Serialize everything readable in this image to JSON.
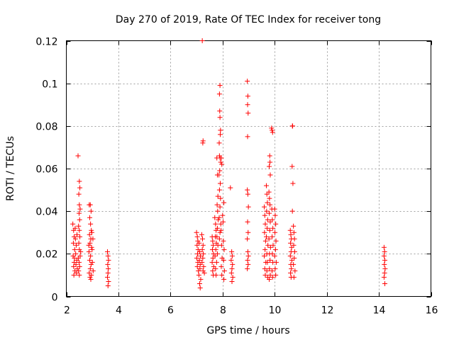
{
  "chart_data": {
    "type": "scatter",
    "title": "Day 270 of 2019, Rate Of TEC Index for receiver tong",
    "xlabel": "GPS time / hours",
    "ylabel": "ROTI / TECUs",
    "xlim": [
      2,
      16
    ],
    "ylim": [
      0,
      0.12
    ],
    "xticks": [
      2,
      4,
      6,
      8,
      10,
      12,
      14,
      16
    ],
    "xtick_labels": [
      "2",
      "4",
      "6",
      "8",
      "10",
      "12",
      "14",
      "16"
    ],
    "yticks": [
      0,
      0.02,
      0.04,
      0.06,
      0.08,
      0.1,
      0.12
    ],
    "ytick_labels": [
      "0",
      "0.02",
      "0.04",
      "0.06",
      "0.08",
      "0.1",
      "0.12"
    ],
    "grid": true,
    "marker": "+",
    "color": "#ff0000",
    "series": [
      {
        "name": "ROTI",
        "points": [
          [
            2.25,
            0.034
          ],
          [
            2.28,
            0.031
          ],
          [
            2.3,
            0.028
          ],
          [
            2.27,
            0.025
          ],
          [
            2.32,
            0.022
          ],
          [
            2.26,
            0.019
          ],
          [
            2.3,
            0.016
          ],
          [
            2.28,
            0.014
          ],
          [
            2.33,
            0.012
          ],
          [
            2.29,
            0.01
          ],
          [
            2.35,
            0.027
          ],
          [
            2.38,
            0.024
          ],
          [
            2.36,
            0.02
          ],
          [
            2.4,
            0.017
          ],
          [
            2.37,
            0.015
          ],
          [
            2.42,
            0.013
          ],
          [
            2.39,
            0.011
          ],
          [
            2.34,
            0.032
          ],
          [
            2.41,
            0.029
          ],
          [
            2.31,
            0.018
          ],
          [
            2.45,
            0.066
          ],
          [
            2.5,
            0.054
          ],
          [
            2.52,
            0.051
          ],
          [
            2.48,
            0.048
          ],
          [
            2.5,
            0.043
          ],
          [
            2.53,
            0.041
          ],
          [
            2.49,
            0.039
          ],
          [
            2.51,
            0.036
          ],
          [
            2.47,
            0.033
          ],
          [
            2.5,
            0.031
          ],
          [
            2.52,
            0.028
          ],
          [
            2.48,
            0.025
          ],
          [
            2.5,
            0.022
          ],
          [
            2.53,
            0.019
          ],
          [
            2.49,
            0.016
          ],
          [
            2.51,
            0.014
          ],
          [
            2.47,
            0.012
          ],
          [
            2.5,
            0.01
          ],
          [
            2.55,
            0.021
          ],
          [
            2.46,
            0.018
          ],
          [
            2.88,
            0.043
          ],
          [
            2.92,
            0.043
          ],
          [
            2.95,
            0.04
          ],
          [
            2.9,
            0.037
          ],
          [
            2.93,
            0.034
          ],
          [
            2.96,
            0.031
          ],
          [
            2.89,
            0.029
          ],
          [
            2.94,
            0.027
          ],
          [
            2.91,
            0.025
          ],
          [
            2.97,
            0.023
          ],
          [
            2.87,
            0.021
          ],
          [
            2.93,
            0.019
          ],
          [
            2.9,
            0.017
          ],
          [
            2.95,
            0.015
          ],
          [
            2.92,
            0.013
          ],
          [
            2.88,
            0.011
          ],
          [
            2.96,
            0.01
          ],
          [
            2.91,
            0.009
          ],
          [
            2.94,
            0.008
          ],
          [
            3.0,
            0.016
          ],
          [
            3.02,
            0.027
          ],
          [
            2.99,
            0.022
          ],
          [
            3.03,
            0.012
          ],
          [
            2.86,
            0.024
          ],
          [
            2.98,
            0.03
          ],
          [
            3.58,
            0.021
          ],
          [
            3.6,
            0.019
          ],
          [
            3.62,
            0.017
          ],
          [
            3.59,
            0.015
          ],
          [
            3.61,
            0.013
          ],
          [
            3.6,
            0.011
          ],
          [
            3.58,
            0.009
          ],
          [
            3.62,
            0.007
          ],
          [
            3.6,
            0.005
          ],
          [
            7.0,
            0.03
          ],
          [
            7.03,
            0.028
          ],
          [
            7.05,
            0.026
          ],
          [
            7.02,
            0.024
          ],
          [
            7.06,
            0.022
          ],
          [
            7.04,
            0.02
          ],
          [
            7.01,
            0.018
          ],
          [
            7.05,
            0.016
          ],
          [
            7.03,
            0.014
          ],
          [
            7.07,
            0.012
          ],
          [
            7.1,
            0.025
          ],
          [
            7.12,
            0.021
          ],
          [
            7.15,
            0.019
          ],
          [
            7.11,
            0.017
          ],
          [
            7.14,
            0.015
          ],
          [
            7.13,
            0.013
          ],
          [
            7.09,
            0.01
          ],
          [
            7.16,
            0.008
          ],
          [
            7.12,
            0.006
          ],
          [
            7.14,
            0.004
          ],
          [
            7.2,
            0.029
          ],
          [
            7.23,
            0.027
          ],
          [
            7.25,
            0.024
          ],
          [
            7.22,
            0.022
          ],
          [
            7.26,
            0.02
          ],
          [
            7.24,
            0.018
          ],
          [
            7.21,
            0.016
          ],
          [
            7.27,
            0.014
          ],
          [
            7.25,
            0.012
          ],
          [
            7.3,
            0.011
          ],
          [
            7.22,
            0.12
          ],
          [
            7.25,
            0.073
          ],
          [
            7.24,
            0.072
          ],
          [
            7.6,
            0.028
          ],
          [
            7.62,
            0.026
          ],
          [
            7.64,
            0.024
          ],
          [
            7.61,
            0.022
          ],
          [
            7.65,
            0.02
          ],
          [
            7.63,
            0.018
          ],
          [
            7.6,
            0.016
          ],
          [
            7.66,
            0.014
          ],
          [
            7.62,
            0.012
          ],
          [
            7.64,
            0.01
          ],
          [
            7.7,
            0.037
          ],
          [
            7.73,
            0.034
          ],
          [
            7.75,
            0.031
          ],
          [
            7.72,
            0.028
          ],
          [
            7.76,
            0.025
          ],
          [
            7.74,
            0.022
          ],
          [
            7.71,
            0.019
          ],
          [
            7.77,
            0.016
          ],
          [
            7.73,
            0.013
          ],
          [
            7.75,
            0.01
          ],
          [
            7.78,
            0.065
          ],
          [
            7.8,
            0.057
          ],
          [
            7.82,
            0.047
          ],
          [
            7.79,
            0.043
          ],
          [
            7.81,
            0.04
          ],
          [
            7.83,
            0.036
          ],
          [
            7.8,
            0.032
          ],
          [
            7.78,
            0.028
          ],
          [
            7.82,
            0.024
          ],
          [
            7.8,
            0.02
          ],
          [
            7.9,
            0.099
          ],
          [
            7.88,
            0.095
          ],
          [
            7.89,
            0.087
          ],
          [
            7.9,
            0.084
          ],
          [
            7.92,
            0.078
          ],
          [
            7.91,
            0.076
          ],
          [
            7.87,
            0.072
          ],
          [
            7.88,
            0.066
          ],
          [
            7.9,
            0.065
          ],
          [
            7.93,
            0.063
          ],
          [
            7.89,
            0.059
          ],
          [
            7.86,
            0.057
          ],
          [
            7.91,
            0.053
          ],
          [
            7.88,
            0.05
          ],
          [
            7.92,
            0.046
          ],
          [
            7.9,
            0.042
          ],
          [
            7.87,
            0.037
          ],
          [
            7.93,
            0.034
          ],
          [
            7.9,
            0.03
          ],
          [
            7.88,
            0.027
          ],
          [
            7.95,
            0.065
          ],
          [
            7.97,
            0.062
          ],
          [
            7.94,
            0.031
          ],
          [
            7.96,
            0.024
          ],
          [
            7.98,
            0.018
          ],
          [
            7.95,
            0.014
          ],
          [
            7.97,
            0.01
          ],
          [
            8.0,
            0.038
          ],
          [
            8.02,
            0.035
          ],
          [
            8.05,
            0.044
          ],
          [
            8.03,
            0.026
          ],
          [
            8.06,
            0.022
          ],
          [
            8.04,
            0.017
          ],
          [
            8.07,
            0.012
          ],
          [
            8.05,
            0.008
          ],
          [
            8.3,
            0.051
          ],
          [
            8.35,
            0.021
          ],
          [
            8.37,
            0.019
          ],
          [
            8.33,
            0.017
          ],
          [
            8.38,
            0.015
          ],
          [
            8.36,
            0.013
          ],
          [
            8.34,
            0.011
          ],
          [
            8.39,
            0.009
          ],
          [
            8.36,
            0.007
          ],
          [
            8.95,
            0.101
          ],
          [
            8.97,
            0.094
          ],
          [
            8.96,
            0.09
          ],
          [
            8.98,
            0.086
          ],
          [
            8.96,
            0.075
          ],
          [
            8.95,
            0.05
          ],
          [
            8.97,
            0.048
          ],
          [
            8.99,
            0.042
          ],
          [
            8.96,
            0.035
          ],
          [
            8.98,
            0.03
          ],
          [
            8.95,
            0.027
          ],
          [
            8.97,
            0.021
          ],
          [
            8.99,
            0.019
          ],
          [
            8.96,
            0.017
          ],
          [
            8.98,
            0.015
          ],
          [
            8.95,
            0.013
          ],
          [
            9.6,
            0.042
          ],
          [
            9.62,
            0.038
          ],
          [
            9.64,
            0.034
          ],
          [
            9.61,
            0.03
          ],
          [
            9.65,
            0.026
          ],
          [
            9.63,
            0.022
          ],
          [
            9.6,
            0.019
          ],
          [
            9.66,
            0.016
          ],
          [
            9.62,
            0.013
          ],
          [
            9.64,
            0.01
          ],
          [
            9.68,
            0.052
          ],
          [
            9.7,
            0.048
          ],
          [
            9.72,
            0.044
          ],
          [
            9.69,
            0.04
          ],
          [
            9.73,
            0.036
          ],
          [
            9.71,
            0.032
          ],
          [
            9.68,
            0.028
          ],
          [
            9.74,
            0.024
          ],
          [
            9.7,
            0.02
          ],
          [
            9.72,
            0.016
          ],
          [
            9.7,
            0.012
          ],
          [
            9.73,
            0.009
          ],
          [
            9.78,
            0.049
          ],
          [
            9.8,
            0.046
          ],
          [
            9.82,
            0.043
          ],
          [
            9.79,
            0.039
          ],
          [
            9.83,
            0.035
          ],
          [
            9.81,
            0.031
          ],
          [
            9.78,
            0.027
          ],
          [
            9.84,
            0.023
          ],
          [
            9.8,
            0.02
          ],
          [
            9.82,
            0.017
          ],
          [
            9.8,
            0.013
          ],
          [
            9.83,
            0.01
          ],
          [
            9.79,
            0.008
          ],
          [
            9.81,
            0.066
          ],
          [
            9.82,
            0.063
          ],
          [
            9.79,
            0.061
          ],
          [
            9.83,
            0.057
          ],
          [
            9.88,
            0.079
          ],
          [
            9.9,
            0.078
          ],
          [
            9.92,
            0.077
          ],
          [
            9.89,
            0.041
          ],
          [
            9.91,
            0.036
          ],
          [
            9.93,
            0.032
          ],
          [
            9.9,
            0.028
          ],
          [
            9.94,
            0.024
          ],
          [
            9.91,
            0.02
          ],
          [
            9.93,
            0.016
          ],
          [
            9.9,
            0.012
          ],
          [
            9.92,
            0.009
          ],
          [
            10.0,
            0.041
          ],
          [
            10.02,
            0.038
          ],
          [
            10.04,
            0.034
          ],
          [
            10.01,
            0.03
          ],
          [
            10.05,
            0.026
          ],
          [
            10.03,
            0.022
          ],
          [
            10.0,
            0.019
          ],
          [
            10.06,
            0.016
          ],
          [
            10.02,
            0.013
          ],
          [
            10.04,
            0.01
          ],
          [
            10.6,
            0.031
          ],
          [
            10.62,
            0.029
          ],
          [
            10.64,
            0.027
          ],
          [
            10.61,
            0.025
          ],
          [
            10.65,
            0.023
          ],
          [
            10.63,
            0.021
          ],
          [
            10.6,
            0.019
          ],
          [
            10.66,
            0.017
          ],
          [
            10.62,
            0.015
          ],
          [
            10.64,
            0.013
          ],
          [
            10.61,
            0.011
          ],
          [
            10.63,
            0.009
          ],
          [
            10.68,
            0.08
          ],
          [
            10.69,
            0.08
          ],
          [
            10.67,
            0.061
          ],
          [
            10.7,
            0.053
          ],
          [
            10.68,
            0.04
          ],
          [
            10.72,
            0.033
          ],
          [
            10.74,
            0.03
          ],
          [
            10.76,
            0.027
          ],
          [
            10.73,
            0.024
          ],
          [
            10.77,
            0.021
          ],
          [
            10.75,
            0.018
          ],
          [
            10.72,
            0.015
          ],
          [
            10.78,
            0.012
          ],
          [
            10.74,
            0.009
          ],
          [
            14.2,
            0.023
          ],
          [
            14.22,
            0.021
          ],
          [
            14.2,
            0.019
          ],
          [
            14.23,
            0.017
          ],
          [
            14.21,
            0.015
          ],
          [
            14.24,
            0.013
          ],
          [
            14.22,
            0.011
          ],
          [
            14.2,
            0.009
          ],
          [
            14.23,
            0.006
          ]
        ]
      }
    ]
  }
}
